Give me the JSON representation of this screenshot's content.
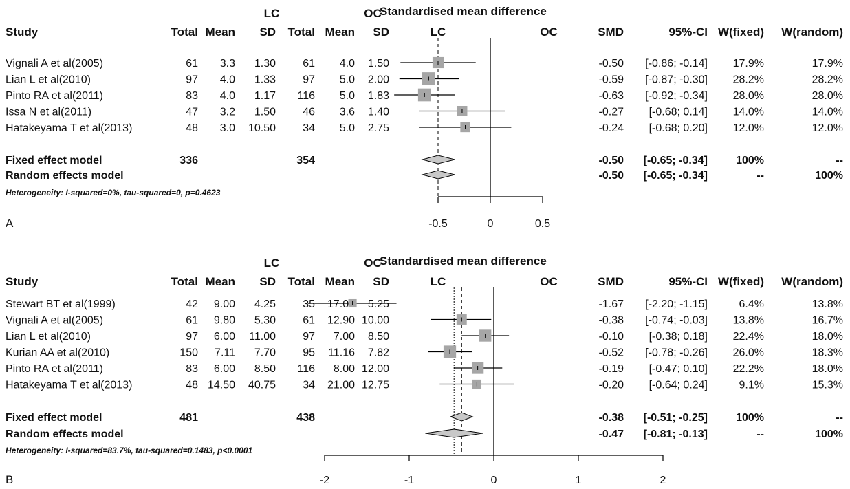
{
  "figure": {
    "panels": [
      {
        "label": "A",
        "columns": {
          "group1_label": "LC",
          "group2_label": "OC",
          "study": "Study",
          "total": "Total",
          "mean": "Mean",
          "sd": "SD",
          "smd_title": "Standardised mean difference",
          "smd": "SMD",
          "ci": "95%-CI",
          "w_fixed": "W(fixed)",
          "w_random": "W(random)",
          "left_dir": "LC",
          "right_dir": "OC"
        },
        "studies": [
          {
            "study": "Vignali A et al(2005)",
            "lc_total": "61",
            "lc_mean": "3.3",
            "lc_sd": "1.30",
            "oc_total": "61",
            "oc_mean": "4.0",
            "oc_sd": "1.50",
            "smd_text": "-0.50",
            "ci_text": "[-0.86; -0.14]",
            "wf": "17.9%",
            "wr": "17.9%"
          },
          {
            "study": "Lian L et al(2010)",
            "lc_total": "97",
            "lc_mean": "4.0",
            "lc_sd": "1.33",
            "oc_total": "97",
            "oc_mean": "5.0",
            "oc_sd": "2.00",
            "smd_text": "-0.59",
            "ci_text": "[-0.87; -0.30]",
            "wf": "28.2%",
            "wr": "28.2%"
          },
          {
            "study": "Pinto RA et al(2011)",
            "lc_total": "83",
            "lc_mean": "4.0",
            "lc_sd": "1.17",
            "oc_total": "116",
            "oc_mean": "5.0",
            "oc_sd": "1.83",
            "smd_text": "-0.63",
            "ci_text": "[-0.92; -0.34]",
            "wf": "28.0%",
            "wr": "28.0%"
          },
          {
            "study": "Issa N et al(2011)",
            "lc_total": "47",
            "lc_mean": "3.2",
            "lc_sd": "1.50",
            "oc_total": "46",
            "oc_mean": "3.6",
            "oc_sd": "1.40",
            "smd_text": "-0.27",
            "ci_text": "[-0.68; 0.14]",
            "wf": "14.0%",
            "wr": "14.0%"
          },
          {
            "study": "Hatakeyama T et al(2013)",
            "lc_total": "48",
            "lc_mean": "3.0",
            "lc_sd": "10.50",
            "oc_total": "34",
            "oc_mean": "5.0",
            "oc_sd": "2.75",
            "smd_text": "-0.24",
            "ci_text": "[-0.68; 0.20]",
            "wf": "12.0%",
            "wr": "12.0%"
          }
        ],
        "fixed": {
          "label": "Fixed effect model",
          "lc_total": "336",
          "oc_total": "354",
          "smd_text": "-0.50",
          "ci_text": "[-0.65; -0.34]",
          "wf": "100%",
          "wr": "--"
        },
        "random": {
          "label": "Random effects model",
          "smd_text": "-0.50",
          "ci_text": "[-0.65; -0.34]",
          "wf": "--",
          "wr": "100%"
        },
        "heterogeneity": "Heterogeneity: I-squared=0%, tau-squared=0, p=0.4623",
        "ticks": [
          "-0.5",
          "0",
          "0.5"
        ]
      },
      {
        "label": "B",
        "columns": {
          "group1_label": "LC",
          "group2_label": "OC",
          "study": "Study",
          "total": "Total",
          "mean": "Mean",
          "sd": "SD",
          "smd_title": "Standardised mean difference",
          "smd": "SMD",
          "ci": "95%-CI",
          "w_fixed": "W(fixed)",
          "w_random": "W(random)",
          "left_dir": "LC",
          "right_dir": "OC"
        },
        "studies": [
          {
            "study": "Stewart BT et al(1999)",
            "lc_total": "42",
            "lc_mean": "9.00",
            "lc_sd": "4.25",
            "oc_total": "35",
            "oc_mean": "17.00",
            "oc_sd": "5.25",
            "smd_text": "-1.67",
            "ci_text": "[-2.20; -1.15]",
            "wf": "6.4%",
            "wr": "13.8%"
          },
          {
            "study": "Vignali A et al(2005)",
            "lc_total": "61",
            "lc_mean": "9.80",
            "lc_sd": "5.30",
            "oc_total": "61",
            "oc_mean": "12.90",
            "oc_sd": "10.00",
            "smd_text": "-0.38",
            "ci_text": "[-0.74; -0.03]",
            "wf": "13.8%",
            "wr": "16.7%"
          },
          {
            "study": "Lian L et al(2010)",
            "lc_total": "97",
            "lc_mean": "6.00",
            "lc_sd": "11.00",
            "oc_total": "97",
            "oc_mean": "7.00",
            "oc_sd": "8.50",
            "smd_text": "-0.10",
            "ci_text": "[-0.38; 0.18]",
            "wf": "22.4%",
            "wr": "18.0%"
          },
          {
            "study": "Kurian AA et al(2010)",
            "lc_total": "150",
            "lc_mean": "7.11",
            "lc_sd": "7.70",
            "oc_total": "95",
            "oc_mean": "11.16",
            "oc_sd": "7.82",
            "smd_text": "-0.52",
            "ci_text": "[-0.78; -0.26]",
            "wf": "26.0%",
            "wr": "18.3%"
          },
          {
            "study": "Pinto RA et al(2011)",
            "lc_total": "83",
            "lc_mean": "6.00",
            "lc_sd": "8.50",
            "oc_total": "116",
            "oc_mean": "8.00",
            "oc_sd": "12.00",
            "smd_text": "-0.19",
            "ci_text": "[-0.47; 0.10]",
            "wf": "22.2%",
            "wr": "18.0%"
          },
          {
            "study": "Hatakeyama T et al(2013)",
            "lc_total": "48",
            "lc_mean": "14.50",
            "lc_sd": "40.75",
            "oc_total": "34",
            "oc_mean": "21.00",
            "oc_sd": "12.75",
            "smd_text": "-0.20",
            "ci_text": "[-0.64; 0.24]",
            "wf": "9.1%",
            "wr": "15.3%"
          }
        ],
        "fixed": {
          "label": "Fixed effect model",
          "lc_total": "481",
          "oc_total": "438",
          "smd_text": "-0.38",
          "ci_text": "[-0.51; -0.25]",
          "wf": "100%",
          "wr": "--"
        },
        "random": {
          "label": "Random effects model",
          "smd_text": "-0.47",
          "ci_text": "[-0.81; -0.13]",
          "wf": "--",
          "wr": "100%"
        },
        "heterogeneity": "Heterogeneity: I-squared=83.7%, tau-squared=0.1483, p<0.0001",
        "ticks": [
          "-2",
          "-1",
          "0",
          "1",
          "2"
        ]
      }
    ]
  },
  "chart_data": [
    {
      "type": "forest",
      "title": "Standardised mean difference",
      "xlim": [
        -0.5,
        0.5
      ],
      "xticks": [
        -0.5,
        0,
        0.5
      ],
      "reference_line": 0,
      "colors": {
        "box": "#a6a6a6",
        "diamond": "#c8c8c8",
        "line": "#000000"
      },
      "studies": [
        {
          "name": "Vignali A et al(2005)",
          "smd": -0.5,
          "lo": -0.86,
          "hi": -0.14,
          "weight": 17.9
        },
        {
          "name": "Lian L et al(2010)",
          "smd": -0.59,
          "lo": -0.87,
          "hi": -0.3,
          "weight": 28.2
        },
        {
          "name": "Pinto RA et al(2011)",
          "smd": -0.63,
          "lo": -0.92,
          "hi": -0.34,
          "weight": 28.0
        },
        {
          "name": "Issa N et al(2011)",
          "smd": -0.27,
          "lo": -0.68,
          "hi": 0.14,
          "weight": 14.0
        },
        {
          "name": "Hatakeyama T et al(2013)",
          "smd": -0.24,
          "lo": -0.68,
          "hi": 0.2,
          "weight": 12.0
        }
      ],
      "fixed": {
        "smd": -0.5,
        "lo": -0.65,
        "hi": -0.34
      },
      "random": {
        "smd": -0.5,
        "lo": -0.65,
        "hi": -0.34
      }
    },
    {
      "type": "forest",
      "title": "Standardised mean difference",
      "xlim": [
        -2,
        2
      ],
      "xticks": [
        -2,
        -1,
        0,
        1,
        2
      ],
      "reference_line": 0,
      "colors": {
        "box": "#a6a6a6",
        "diamond": "#c8c8c8",
        "line": "#000000"
      },
      "studies": [
        {
          "name": "Stewart BT et al(1999)",
          "smd": -1.67,
          "lo": -2.2,
          "hi": -1.15,
          "weight": 6.4
        },
        {
          "name": "Vignali A et al(2005)",
          "smd": -0.38,
          "lo": -0.74,
          "hi": -0.03,
          "weight": 13.8
        },
        {
          "name": "Lian L et al(2010)",
          "smd": -0.1,
          "lo": -0.38,
          "hi": 0.18,
          "weight": 22.4
        },
        {
          "name": "Kurian AA et al(2010)",
          "smd": -0.52,
          "lo": -0.78,
          "hi": -0.26,
          "weight": 26.0
        },
        {
          "name": "Pinto RA et al(2011)",
          "smd": -0.19,
          "lo": -0.47,
          "hi": 0.1,
          "weight": 22.2
        },
        {
          "name": "Hatakeyama T et al(2013)",
          "smd": -0.2,
          "lo": -0.64,
          "hi": 0.24,
          "weight": 9.1
        }
      ],
      "fixed": {
        "smd": -0.38,
        "lo": -0.51,
        "hi": -0.25
      },
      "random": {
        "smd": -0.47,
        "lo": -0.81,
        "hi": -0.13
      }
    }
  ]
}
